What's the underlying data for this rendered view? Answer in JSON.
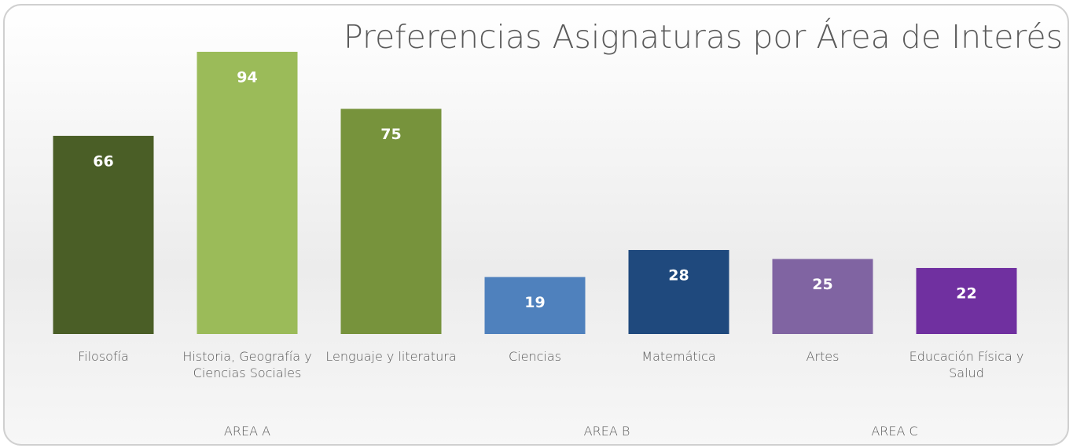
{
  "chart_data": {
    "type": "bar",
    "title": "Preferencias Asignaturas por Área de Interés",
    "ylim": [
      0,
      100
    ],
    "groups": [
      {
        "name": "AREA A",
        "categories": [
          "Filosofía",
          "Historia, Geografía y Ciencias Sociales",
          "Lenguaje y literatura"
        ],
        "values": [
          66,
          94,
          75
        ],
        "colors": [
          "#4a5e26",
          "#9bbb59",
          "#77933c"
        ]
      },
      {
        "name": "AREA B",
        "categories": [
          "Ciencias",
          "Matemática"
        ],
        "values": [
          19,
          28
        ],
        "colors": [
          "#4f81bd",
          "#1f497d"
        ]
      },
      {
        "name": "AREA C",
        "categories": [
          "Artes",
          "Educación Física y Salud"
        ],
        "values": [
          25,
          22
        ],
        "colors": [
          "#8064a2",
          "#7030a0"
        ]
      }
    ]
  }
}
